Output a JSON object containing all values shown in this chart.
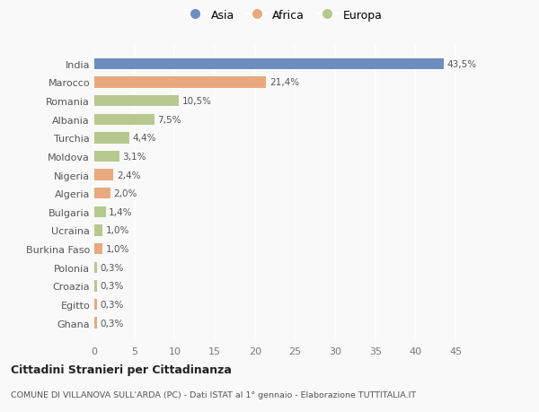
{
  "countries": [
    "India",
    "Marocco",
    "Romania",
    "Albania",
    "Turchia",
    "Moldova",
    "Nigeria",
    "Algeria",
    "Bulgaria",
    "Ucraina",
    "Burkina Faso",
    "Polonia",
    "Croazia",
    "Egitto",
    "Ghana"
  ],
  "values": [
    43.5,
    21.4,
    10.5,
    7.5,
    4.4,
    3.1,
    2.4,
    2.0,
    1.4,
    1.0,
    1.0,
    0.3,
    0.3,
    0.3,
    0.3
  ],
  "labels": [
    "43,5%",
    "21,4%",
    "10,5%",
    "7,5%",
    "4,4%",
    "3,1%",
    "2,4%",
    "2,0%",
    "1,4%",
    "1,0%",
    "1,0%",
    "0,3%",
    "0,3%",
    "0,3%",
    "0,3%"
  ],
  "continents": [
    "Asia",
    "Africa",
    "Europa",
    "Europa",
    "Europa",
    "Europa",
    "Africa",
    "Africa",
    "Europa",
    "Europa",
    "Africa",
    "Europa",
    "Europa",
    "Africa",
    "Africa"
  ],
  "colors": {
    "Asia": "#6d8ebf",
    "Africa": "#e8a97e",
    "Europa": "#b5c98e"
  },
  "legend_labels": [
    "Asia",
    "Africa",
    "Europa"
  ],
  "xlim": [
    0,
    47
  ],
  "xticks": [
    0,
    5,
    10,
    15,
    20,
    25,
    30,
    35,
    40,
    45
  ],
  "title": "Cittadini Stranieri per Cittadinanza",
  "subtitle": "COMUNE DI VILLANOVA SULL'ARDA (PC) - Dati ISTAT al 1° gennaio - Elaborazione TUTTITALIA.IT",
  "bg_color": "#f9f9f9",
  "plot_bg_color": "#f9f9f9",
  "grid_color": "#ffffff",
  "bar_height": 0.6
}
